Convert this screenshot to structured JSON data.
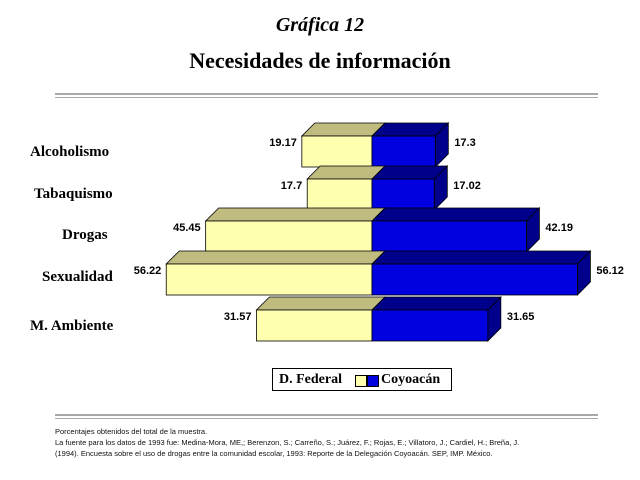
{
  "header": {
    "kicker": "Gráfica 12",
    "title": "Necesidades de información"
  },
  "chart_data": {
    "type": "bar",
    "orientation": "horizontal",
    "style": "3d-diverging",
    "categories": [
      "Alcoholismo",
      "Tabaquismo",
      "Drogas",
      "Sexualidad",
      "M. Ambiente"
    ],
    "series": [
      {
        "name": "D. Federal",
        "values": [
          19.17,
          17.7,
          45.45,
          56.22,
          31.57
        ],
        "color": "#ffffb0",
        "top_color": "#c0bc80"
      },
      {
        "name": "Coyoacán",
        "values": [
          17.3,
          17.02,
          42.19,
          56.12,
          31.65
        ],
        "color": "#0000e0",
        "top_color": "#00008a"
      }
    ],
    "value_labels": {
      "D. Federal": [
        "19.17",
        "17.7",
        "45.45",
        "56.22",
        "31.57"
      ],
      "Coyoacán": [
        "17.3",
        "17.02",
        "42.19",
        "56.12",
        "31.65"
      ]
    },
    "legend_position": "bottom-center",
    "grid": false
  },
  "footnote": {
    "lines": [
      "Porcentajes obtenidos del total de la muestra.",
      "La fuente para los datos de 1993 fue: Medina-Mora, ME,; Berenzon, S.; Carreño, S.; Juárez, F.; Rojas, E.; Villatoro, J.; Cardiel, H.; Breña, J.",
      "(1994). Encuesta sobre el uso de drogas entre la comunidad escolar, 1993: Reporte de la Delegación Coyoacán. SEP, IMP. México."
    ]
  }
}
